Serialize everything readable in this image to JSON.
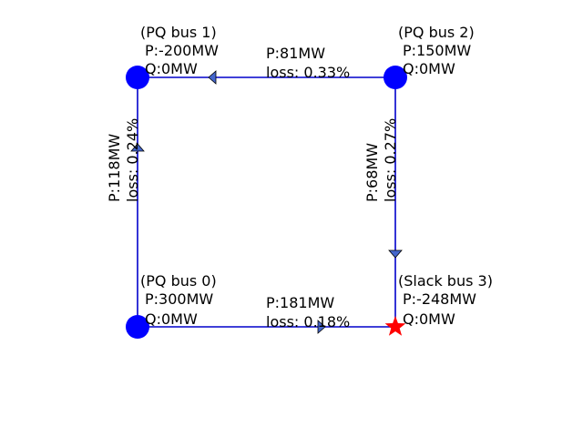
{
  "colors": {
    "line": "#0000cc",
    "bus": "#0000ff",
    "slack": "#ff0000",
    "arrow_fill": "#4466cc"
  },
  "buses": [
    {
      "id": 0,
      "kind": "pq",
      "name": "(PQ bus 0)",
      "p": "P:300MW",
      "q": "Q:0MW"
    },
    {
      "id": 1,
      "kind": "pq",
      "name": "(PQ bus 1)",
      "p": "P:-200MW",
      "q": "Q:0MW"
    },
    {
      "id": 2,
      "kind": "pq",
      "name": "(PQ bus 2)",
      "p": "P:150MW",
      "q": "Q:0MW"
    },
    {
      "id": 3,
      "kind": "slack",
      "name": "(Slack bus 3)",
      "p": "P:-248MW",
      "q": "Q:0MW"
    }
  ],
  "lines": [
    {
      "from": 0,
      "to": 3,
      "flow": "P:181MW",
      "loss": "loss: 0.18%"
    },
    {
      "from": 2,
      "to": 1,
      "flow": "P:81MW",
      "loss": "loss: 0.33%"
    },
    {
      "from": 0,
      "to": 1,
      "flow": "P:118MW",
      "loss": "loss: 0.24%"
    },
    {
      "from": 2,
      "to": 3,
      "flow": "P:68MW",
      "loss": "loss: 0.27%"
    }
  ]
}
